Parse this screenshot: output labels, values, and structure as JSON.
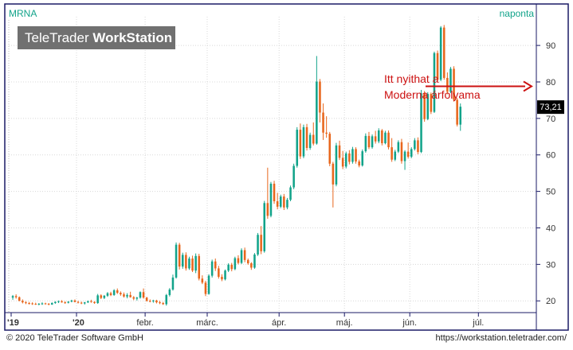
{
  "header": {
    "ticker": "MRNA",
    "period": "naponta",
    "logo_light": "TeleTrader ",
    "logo_bold": "WorkStation"
  },
  "annotation": {
    "line1": "Itt nyithat a",
    "line2": "Moderna árfolyama"
  },
  "last_value": "73,21",
  "footer": {
    "copyright": "© 2020 TeleTrader Software GmbH",
    "url": "https://workstation.teletrader.com/"
  },
  "colors": {
    "up": "#12a38a",
    "down": "#e8661c",
    "annotation": "#cc1111",
    "grid": "#d8d8d8",
    "frame": "#1a1a66"
  },
  "chart_data": {
    "type": "candlestick",
    "ylim": [
      17,
      97
    ],
    "y_ticks": [
      20,
      30,
      40,
      50,
      60,
      70,
      80,
      90
    ],
    "x_tick_labels": [
      {
        "label": "'19",
        "day": 0
      },
      {
        "label": "'20",
        "day": 20
      },
      {
        "label": "febr.",
        "day": 41
      },
      {
        "label": "márc.",
        "day": 60
      },
      {
        "label": "ápr.",
        "day": 82
      },
      {
        "label": "máj.",
        "day": 102
      },
      {
        "label": "jún.",
        "day": 122
      },
      {
        "label": "júl.",
        "day": 143
      }
    ],
    "days": 160,
    "candles": [
      [
        20.9,
        21.6,
        20.3,
        21.3
      ],
      [
        21.3,
        21.8,
        20.6,
        21.0
      ],
      [
        21.0,
        21.2,
        19.9,
        20.0
      ],
      [
        20.0,
        20.4,
        19.3,
        19.6
      ],
      [
        19.6,
        19.9,
        19.1,
        19.4
      ],
      [
        19.4,
        19.7,
        19.0,
        19.3
      ],
      [
        19.3,
        19.6,
        18.9,
        19.2
      ],
      [
        19.2,
        19.5,
        18.9,
        19.1
      ],
      [
        19.1,
        19.4,
        18.8,
        19.2
      ],
      [
        19.2,
        19.6,
        18.9,
        19.3
      ],
      [
        19.3,
        19.5,
        19.0,
        19.2
      ],
      [
        19.2,
        19.4,
        18.8,
        19.0
      ],
      [
        19.0,
        19.6,
        18.9,
        19.4
      ],
      [
        19.4,
        19.9,
        19.2,
        19.7
      ],
      [
        19.7,
        20.1,
        19.4,
        19.9
      ],
      [
        19.9,
        20.2,
        19.5,
        19.6
      ],
      [
        19.6,
        19.9,
        19.2,
        19.5
      ],
      [
        19.5,
        19.9,
        19.3,
        19.8
      ],
      [
        19.8,
        20.3,
        19.6,
        20.1
      ],
      [
        20.1,
        20.4,
        19.6,
        19.7
      ],
      [
        19.7,
        20.0,
        19.3,
        19.5
      ],
      [
        19.5,
        19.8,
        19.1,
        19.3
      ],
      [
        19.3,
        19.7,
        19.0,
        19.6
      ],
      [
        19.6,
        20.1,
        19.4,
        19.9
      ],
      [
        19.9,
        20.3,
        19.5,
        19.7
      ],
      [
        19.7,
        19.9,
        19.2,
        19.4
      ],
      [
        19.4,
        21.9,
        19.2,
        21.5
      ],
      [
        21.5,
        21.8,
        20.5,
        20.8
      ],
      [
        20.8,
        21.6,
        20.5,
        21.4
      ],
      [
        21.4,
        22.4,
        21.1,
        22.1
      ],
      [
        22.1,
        22.5,
        21.3,
        21.6
      ],
      [
        21.6,
        23.2,
        21.4,
        22.9
      ],
      [
        22.9,
        23.4,
        21.9,
        22.2
      ],
      [
        22.2,
        22.6,
        21.4,
        21.8
      ],
      [
        21.8,
        22.3,
        20.9,
        21.2
      ],
      [
        21.2,
        22.1,
        20.7,
        21.6
      ],
      [
        21.6,
        22.5,
        20.9,
        21.0
      ],
      [
        21.0,
        21.3,
        20.2,
        20.6
      ],
      [
        20.6,
        21.1,
        20.1,
        20.9
      ],
      [
        20.9,
        22.6,
        20.6,
        22.4
      ],
      [
        22.4,
        23.4,
        20.6,
        20.9
      ],
      [
        20.9,
        21.1,
        19.8,
        20.0
      ],
      [
        20.0,
        20.4,
        19.6,
        19.9
      ],
      [
        19.9,
        20.3,
        19.5,
        20.1
      ],
      [
        20.1,
        20.3,
        19.3,
        19.6
      ],
      [
        19.6,
        20.0,
        19.1,
        19.4
      ],
      [
        19.4,
        19.7,
        18.9,
        19.1
      ],
      [
        19.1,
        21.9,
        18.7,
        21.6
      ],
      [
        21.6,
        23.5,
        21.2,
        23.1
      ],
      [
        23.1,
        27.2,
        22.8,
        26.4
      ],
      [
        26.4,
        36.0,
        26.1,
        35.4
      ],
      [
        35.4,
        35.9,
        28.6,
        29.4
      ],
      [
        29.4,
        33.2,
        28.8,
        32.6
      ],
      [
        32.6,
        33.3,
        28.3,
        28.9
      ],
      [
        28.9,
        32.1,
        28.5,
        31.6
      ],
      [
        31.6,
        32.4,
        27.9,
        28.3
      ],
      [
        28.3,
        33.0,
        27.6,
        32.3
      ],
      [
        32.3,
        32.9,
        25.6,
        26.1
      ],
      [
        26.1,
        27.0,
        24.6,
        25.0
      ],
      [
        25.0,
        25.5,
        21.3,
        21.9
      ],
      [
        21.9,
        27.3,
        21.7,
        26.9
      ],
      [
        26.9,
        31.3,
        26.4,
        30.8
      ],
      [
        30.8,
        31.6,
        28.2,
        28.9
      ],
      [
        28.9,
        29.6,
        26.1,
        26.6
      ],
      [
        26.6,
        27.3,
        25.4,
        25.9
      ],
      [
        25.9,
        28.6,
        25.6,
        28.3
      ],
      [
        28.3,
        30.3,
        27.9,
        29.9
      ],
      [
        29.9,
        30.4,
        28.1,
        28.7
      ],
      [
        28.7,
        32.1,
        28.4,
        31.7
      ],
      [
        31.7,
        32.5,
        30.0,
        30.4
      ],
      [
        30.4,
        34.4,
        30.1,
        33.9
      ],
      [
        33.9,
        34.6,
        30.6,
        31.2
      ],
      [
        31.2,
        31.6,
        29.9,
        30.3
      ],
      [
        30.3,
        30.6,
        28.5,
        29.1
      ],
      [
        29.1,
        33.1,
        28.8,
        32.7
      ],
      [
        32.7,
        38.6,
        32.3,
        38.1
      ],
      [
        38.1,
        40.5,
        32.8,
        33.6
      ],
      [
        33.6,
        47.4,
        33.2,
        46.8
      ],
      [
        46.8,
        56.5,
        42.5,
        43.3
      ],
      [
        43.3,
        52.6,
        42.9,
        52.1
      ],
      [
        52.1,
        52.9,
        46.6,
        47.3
      ],
      [
        47.3,
        49.6,
        45.1,
        45.8
      ],
      [
        45.8,
        49.1,
        45.4,
        48.6
      ],
      [
        48.6,
        49.3,
        44.9,
        45.6
      ],
      [
        45.6,
        48.2,
        45.1,
        47.7
      ],
      [
        47.7,
        51.6,
        47.3,
        51.1
      ],
      [
        51.1,
        57.6,
        50.6,
        57.0
      ],
      [
        57.0,
        67.6,
        56.5,
        66.9
      ],
      [
        66.9,
        68.6,
        58.9,
        59.6
      ],
      [
        59.6,
        68.3,
        59.1,
        67.6
      ],
      [
        67.6,
        68.5,
        61.2,
        61.9
      ],
      [
        61.9,
        66.1,
        61.4,
        65.5
      ],
      [
        65.5,
        68.9,
        62.6,
        63.1
      ],
      [
        63.1,
        87.1,
        62.8,
        80.1
      ],
      [
        80.1,
        80.8,
        68.9,
        71.6
      ],
      [
        71.6,
        74.1,
        64.1,
        66.1
      ],
      [
        66.1,
        70.6,
        64.7,
        65.8
      ],
      [
        65.8,
        66.3,
        56.9,
        57.6
      ],
      [
        57.6,
        58.1,
        45.6,
        51.9
      ],
      [
        51.9,
        63.3,
        51.4,
        62.6
      ],
      [
        62.6,
        63.9,
        58.6,
        59.2
      ],
      [
        59.2,
        61.1,
        56.1,
        56.8
      ],
      [
        56.8,
        60.9,
        56.3,
        60.4
      ],
      [
        60.4,
        61.3,
        57.4,
        58.1
      ],
      [
        58.1,
        62.2,
        57.6,
        61.6
      ],
      [
        61.6,
        62.1,
        57.6,
        58.2
      ],
      [
        58.2,
        58.7,
        56.6,
        57.1
      ],
      [
        57.1,
        61.5,
        56.8,
        61.0
      ],
      [
        61.0,
        65.9,
        60.6,
        65.2
      ],
      [
        65.2,
        66.3,
        61.6,
        62.1
      ],
      [
        62.1,
        65.6,
        61.7,
        65.1
      ],
      [
        65.1,
        66.6,
        63.1,
        63.7
      ],
      [
        63.7,
        67.3,
        63.2,
        66.7
      ],
      [
        66.7,
        67.1,
        62.6,
        63.2
      ],
      [
        63.2,
        66.6,
        62.9,
        66.1
      ],
      [
        66.1,
        66.7,
        61.5,
        62.1
      ],
      [
        62.1,
        64.6,
        58.1,
        58.7
      ],
      [
        58.7,
        61.4,
        58.3,
        60.9
      ],
      [
        60.9,
        64.0,
        60.5,
        63.5
      ],
      [
        63.5,
        64.4,
        57.6,
        58.3
      ],
      [
        58.3,
        61.3,
        55.9,
        60.9
      ],
      [
        60.9,
        63.4,
        59.0,
        59.5
      ],
      [
        59.5,
        62.1,
        59.1,
        61.6
      ],
      [
        61.6,
        64.6,
        61.2,
        64.0
      ],
      [
        64.0,
        64.8,
        60.2,
        60.8
      ],
      [
        60.8,
        77.8,
        60.5,
        76.9
      ],
      [
        76.9,
        77.5,
        69.1,
        69.8
      ],
      [
        69.8,
        77.2,
        69.5,
        76.7
      ],
      [
        76.7,
        77.1,
        71.2,
        71.8
      ],
      [
        71.8,
        88.3,
        71.5,
        87.9
      ],
      [
        87.9,
        88.6,
        80.1,
        80.6
      ],
      [
        80.6,
        95.3,
        80.2,
        94.9
      ],
      [
        94.9,
        95.6,
        80.6,
        81.1
      ],
      [
        81.1,
        82.6,
        76.6,
        77.3
      ],
      [
        77.3,
        84.1,
        76.9,
        83.6
      ],
      [
        83.6,
        84.3,
        74.6,
        75.1
      ],
      [
        75.1,
        75.6,
        67.8,
        68.3
      ],
      [
        68.3,
        74.1,
        66.6,
        73.21
      ]
    ],
    "arrow": {
      "from_day": 134,
      "to_day": 176,
      "value": 78.8
    }
  }
}
